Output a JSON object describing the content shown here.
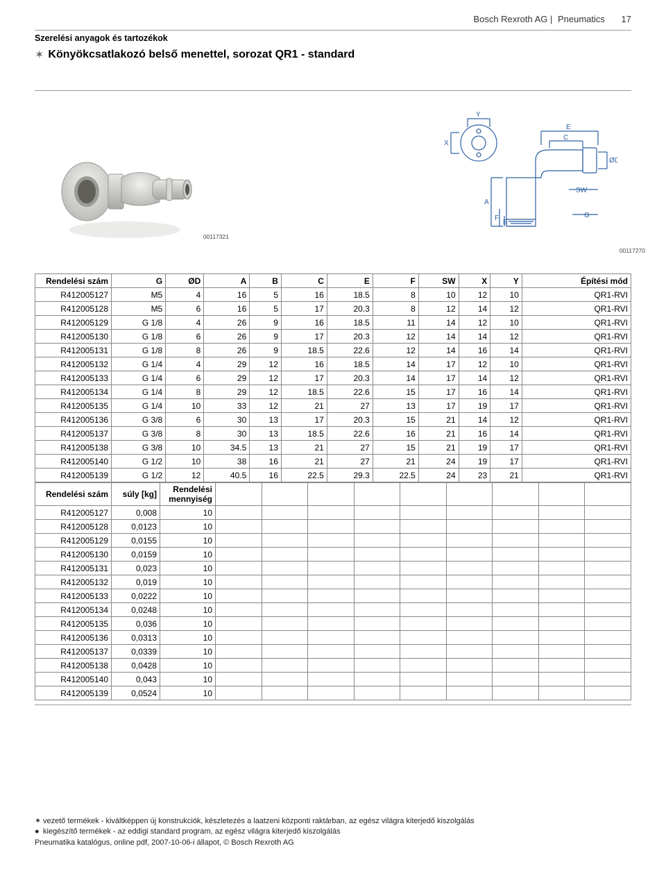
{
  "header": {
    "brand": "Bosch Rexroth AG",
    "divider": " | ",
    "section": "Pneumatics",
    "page": "17"
  },
  "breadcrumb": "Szerelési anyagok és tartozékok",
  "title": "Könyökcsatlakozó belső menettel, sorozat QR1 - standard",
  "figures": {
    "photo_id": "00117321",
    "diagram_id": "00117270",
    "labels": {
      "Y": "Y",
      "X": "X",
      "A": "A",
      "F": "F",
      "B": "B",
      "E": "E",
      "C": "C",
      "OD": "ØD",
      "SW": "SW",
      "G": "G"
    }
  },
  "table1": {
    "columns": [
      "Rendelési szám",
      "G",
      "ØD",
      "A",
      "B",
      "C",
      "E",
      "F",
      "SW",
      "X",
      "Y",
      "Építési mód"
    ],
    "rows": [
      [
        "R412005127",
        "M5",
        "4",
        "16",
        "5",
        "16",
        "18.5",
        "8",
        "10",
        "12",
        "10",
        "QR1-RVI"
      ],
      [
        "R412005128",
        "M5",
        "6",
        "16",
        "5",
        "17",
        "20.3",
        "8",
        "12",
        "14",
        "12",
        "QR1-RVI"
      ],
      [
        "R412005129",
        "G 1/8",
        "4",
        "26",
        "9",
        "16",
        "18.5",
        "11",
        "14",
        "12",
        "10",
        "QR1-RVI"
      ],
      [
        "R412005130",
        "G 1/8",
        "6",
        "26",
        "9",
        "17",
        "20.3",
        "12",
        "14",
        "14",
        "12",
        "QR1-RVI"
      ],
      [
        "R412005131",
        "G 1/8",
        "8",
        "26",
        "9",
        "18.5",
        "22.6",
        "12",
        "14",
        "16",
        "14",
        "QR1-RVI"
      ],
      [
        "R412005132",
        "G 1/4",
        "4",
        "29",
        "12",
        "16",
        "18.5",
        "14",
        "17",
        "12",
        "10",
        "QR1-RVI"
      ],
      [
        "R412005133",
        "G 1/4",
        "6",
        "29",
        "12",
        "17",
        "20.3",
        "14",
        "17",
        "14",
        "12",
        "QR1-RVI"
      ],
      [
        "R412005134",
        "G 1/4",
        "8",
        "29",
        "12",
        "18.5",
        "22.6",
        "15",
        "17",
        "16",
        "14",
        "QR1-RVI"
      ],
      [
        "R412005135",
        "G 1/4",
        "10",
        "33",
        "12",
        "21",
        "27",
        "13",
        "17",
        "19",
        "17",
        "QR1-RVI"
      ],
      [
        "R412005136",
        "G 3/8",
        "6",
        "30",
        "13",
        "17",
        "20.3",
        "15",
        "21",
        "14",
        "12",
        "QR1-RVI"
      ],
      [
        "R412005137",
        "G 3/8",
        "8",
        "30",
        "13",
        "18.5",
        "22.6",
        "16",
        "21",
        "16",
        "14",
        "QR1-RVI"
      ],
      [
        "R412005138",
        "G 3/8",
        "10",
        "34.5",
        "13",
        "21",
        "27",
        "15",
        "21",
        "19",
        "17",
        "QR1-RVI"
      ],
      [
        "R412005140",
        "G 1/2",
        "10",
        "38",
        "16",
        "21",
        "27",
        "21",
        "24",
        "19",
        "17",
        "QR1-RVI"
      ],
      [
        "R412005139",
        "G 1/2",
        "12",
        "40.5",
        "16",
        "22.5",
        "29.3",
        "22.5",
        "24",
        "23",
        "21",
        "QR1-RVI"
      ]
    ]
  },
  "table2": {
    "columns": [
      "Rendelési szám",
      "súly [kg]",
      "Rendelési mennyiség"
    ],
    "rows": [
      [
        "R412005127",
        "0,008",
        "10"
      ],
      [
        "R412005128",
        "0,0123",
        "10"
      ],
      [
        "R412005129",
        "0,0155",
        "10"
      ],
      [
        "R412005130",
        "0,0159",
        "10"
      ],
      [
        "R412005131",
        "0,023",
        "10"
      ],
      [
        "R412005132",
        "0,019",
        "10"
      ],
      [
        "R412005133",
        "0,0222",
        "10"
      ],
      [
        "R412005134",
        "0,0248",
        "10"
      ],
      [
        "R412005135",
        "0,036",
        "10"
      ],
      [
        "R412005136",
        "0,0313",
        "10"
      ],
      [
        "R412005137",
        "0,0339",
        "10"
      ],
      [
        "R412005138",
        "0,0428",
        "10"
      ],
      [
        "R412005140",
        "0,043",
        "10"
      ],
      [
        "R412005139",
        "0,0524",
        "10"
      ]
    ]
  },
  "footer": {
    "line1": "vezető termékek - kiváltképpen új konstrukciók, készletezés a laatzeni központi raktárban, az egész világra kiterjedő kiszolgálás",
    "line2": "kiegészítő termékek - az eddigi standard program, az egész világra kiterjedő kiszolgálás",
    "line3": "Pneumatika katalógus, online pdf, 2007-10-06-i állapot, © Bosch Rexroth AG"
  },
  "style": {
    "border_color": "#888",
    "text_color": "#000",
    "font_size_pt": 9,
    "diagram_stroke": "#2b5fa3",
    "diagram_stroke_width": 1.2
  }
}
